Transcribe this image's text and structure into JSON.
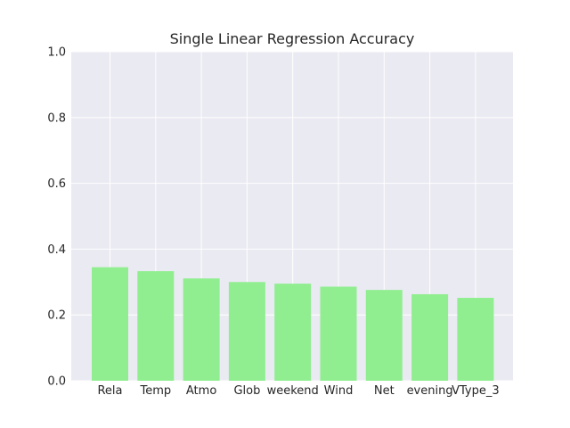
{
  "chart_data": {
    "type": "bar",
    "title": "Single Linear Regression Accuracy",
    "xlabel": "",
    "ylabel": "",
    "categories": [
      "Rela",
      "Temp",
      "Atmo",
      "Glob",
      "weekend",
      "Wind",
      "Net",
      "evening",
      "VType_3"
    ],
    "values": [
      0.345,
      0.333,
      0.311,
      0.3,
      0.295,
      0.286,
      0.276,
      0.263,
      0.252
    ],
    "ylim": [
      0,
      1.0
    ],
    "yticks": [
      "0.0",
      "0.2",
      "0.4",
      "0.6",
      "0.8",
      "1.0"
    ],
    "grid": true,
    "style": {
      "bar_color": "#90ee90",
      "axes_background": "#eaeaf2",
      "grid_color": "#ffffff",
      "text_color": "#262626"
    }
  }
}
